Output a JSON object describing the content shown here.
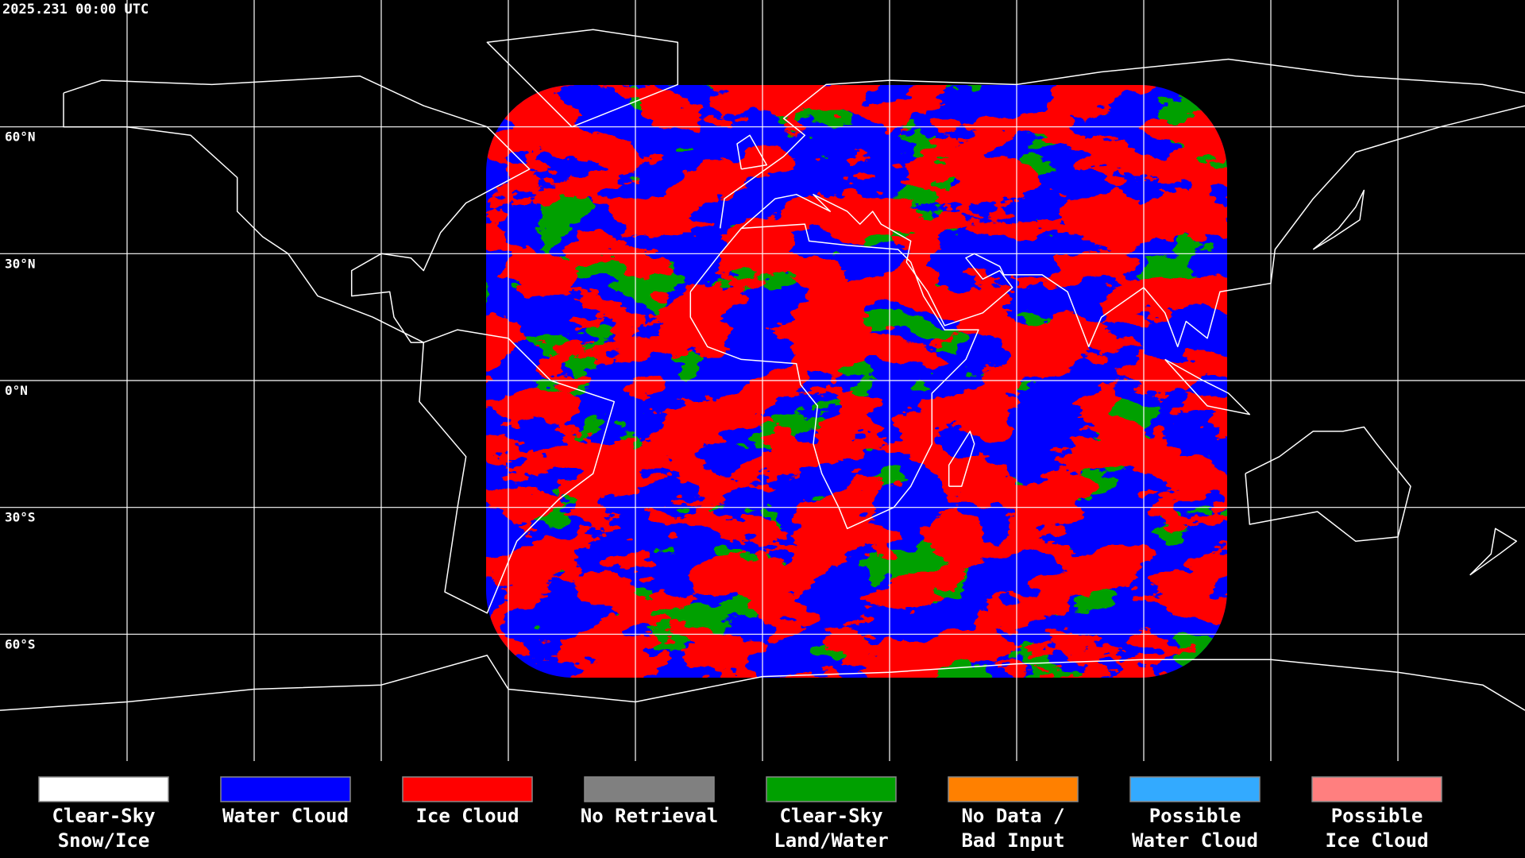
{
  "header": {
    "timestamp": "2025.231 00:00 UTC"
  },
  "map": {
    "lat_labels": [
      "60°N",
      "30°N",
      "0°N",
      "30°S",
      "60°S"
    ]
  },
  "legend": {
    "items": [
      {
        "lines": [
          "Clear-Sky",
          "Snow/Ice"
        ],
        "color": "#ffffff"
      },
      {
        "lines": [
          "Water Cloud"
        ],
        "color": "#0000ff"
      },
      {
        "lines": [
          "Ice Cloud"
        ],
        "color": "#ff0000"
      },
      {
        "lines": [
          "No Retrieval"
        ],
        "color": "#808080"
      },
      {
        "lines": [
          "Clear-Sky",
          "Land/Water"
        ],
        "color": "#00a000"
      },
      {
        "lines": [
          "No Data /",
          "Bad Input"
        ],
        "color": "#ff8000"
      },
      {
        "lines": [
          "Possible",
          "Water Cloud"
        ],
        "color": "#33aaff"
      },
      {
        "lines": [
          "Possible",
          "Ice Cloud"
        ],
        "color": "#ff7f7f"
      }
    ]
  }
}
